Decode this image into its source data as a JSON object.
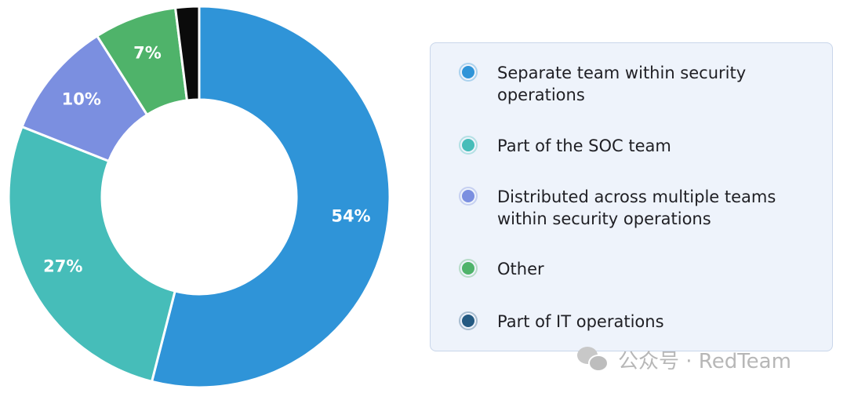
{
  "chart_data": {
    "type": "pie",
    "variant": "donut",
    "slices": [
      {
        "label": "Separate team within security operations",
        "value": 54,
        "display": "54%",
        "color": "#2f94d8"
      },
      {
        "label": "Part of the SOC team",
        "value": 27,
        "display": "27%",
        "color": "#46bdb9"
      },
      {
        "label": "Distributed across multiple teams within security operations",
        "value": 10,
        "display": "10%",
        "color": "#7b8fe0"
      },
      {
        "label": "Other",
        "value": 7,
        "display": "7%",
        "color": "#4fb36a"
      },
      {
        "label": "Part of IT operations",
        "value": 2,
        "display": "",
        "color": "#0b0b0b"
      }
    ],
    "legend_placement": "right",
    "legend_marker_colors": [
      "#2f94d8",
      "#46bdb9",
      "#7b8fe0",
      "#4fb36a",
      "#245a82"
    ]
  },
  "legend": {
    "items": [
      {
        "label": "Separate team within security operations"
      },
      {
        "label": "Part of the SOC team"
      },
      {
        "label": "Distributed across multiple teams within security operations"
      },
      {
        "label": "Other"
      },
      {
        "label": "Part of IT operations"
      }
    ]
  },
  "watermark": {
    "text": "公众号 · RedTeam",
    "icon": "wechat-icon"
  }
}
